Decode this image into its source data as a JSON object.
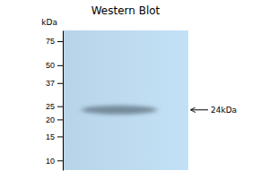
{
  "chart_data": {
    "type": "blot",
    "title": "Western Blot",
    "ylabel": "kDa",
    "log": "y",
    "ylim": [
      8.5,
      90
    ],
    "yticks": [
      75,
      50,
      37,
      25,
      20,
      15,
      10
    ],
    "values": [
      23.5
    ],
    "annotation": "24kDa"
  }
}
